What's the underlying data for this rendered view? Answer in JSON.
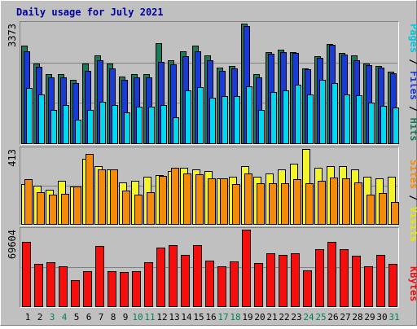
{
  "chart_data": {
    "type": "bar",
    "title": "Daily usage for July 2021",
    "categories": [
      "1",
      "2",
      "3",
      "4",
      "5",
      "6",
      "7",
      "8",
      "9",
      "10",
      "11",
      "12",
      "13",
      "14",
      "15",
      "16",
      "17",
      "18",
      "19",
      "20",
      "21",
      "22",
      "23",
      "24",
      "25",
      "26",
      "27",
      "28",
      "29",
      "30",
      "31"
    ],
    "weekend_days": [
      3,
      4,
      10,
      11,
      17,
      18,
      24,
      25,
      31
    ],
    "panels": [
      {
        "id": "hits-files-pages",
        "max_label": "3373",
        "ymax": 3373,
        "legend": [
          "Pages",
          " / ",
          "Files",
          " / ",
          "Hits"
        ],
        "series": [
          {
            "name": "Hits",
            "color": "#1a7a5a",
            "values": [
              2750,
              2250,
              1950,
              1950,
              1780,
              2250,
              2480,
              2250,
              1880,
              1950,
              1950,
              2830,
              2330,
              2600,
              2760,
              2480,
              2130,
              2180,
              3373,
              1950,
              2580,
              2650,
              2580,
              2110,
              2450,
              2800,
              2550,
              2480,
              2250,
              2180,
              2030
            ]
          },
          {
            "name": "Files",
            "color": "#1a3ad6",
            "values": [
              2600,
              2150,
              1850,
              1850,
              1700,
              2050,
              2330,
              2100,
              1780,
              1850,
              1850,
              2300,
              2230,
              2450,
              2600,
              2330,
              2050,
              2100,
              3300,
              1850,
              2530,
              2580,
              2540,
              2080,
              2400,
              2770,
              2500,
              2330,
              2200,
              2130,
              1980
            ]
          },
          {
            "name": "Pages",
            "color": "#00d8ef",
            "values": [
              1550,
              1380,
              930,
              1080,
              670,
              950,
              1180,
              1080,
              880,
              1030,
              1030,
              1080,
              730,
              1480,
              1580,
              1280,
              1320,
              1320,
              1600,
              930,
              1450,
              1480,
              1650,
              1380,
              1780,
              1700,
              1380,
              1350,
              1150,
              1050,
              1000
            ]
          }
        ]
      },
      {
        "id": "visits-sites",
        "max_label": "413",
        "ymax": 413,
        "legend": [
          "Sites",
          " / ",
          "Visits"
        ],
        "series": [
          {
            "name": "Visits",
            "color": "#f4f42a",
            "values": [
              220,
              210,
              190,
              240,
              205,
              360,
              320,
              300,
              230,
              240,
              260,
              270,
              290,
              310,
              300,
              290,
              250,
              260,
              320,
              260,
              280,
              300,
              330,
              413,
              310,
              320,
              320,
              300,
              260,
              250,
              260
            ]
          },
          {
            "name": "Sites",
            "color": "#f48a0a",
            "values": [
              245,
              175,
              160,
              165,
              205,
              385,
              300,
              300,
              185,
              160,
              175,
              265,
              310,
              280,
              275,
              250,
              250,
              220,
              280,
              225,
              225,
              225,
              245,
              225,
              240,
              255,
              250,
              230,
              160,
              170,
              120
            ]
          }
        ]
      },
      {
        "id": "kbytes",
        "max_label": "69604",
        "ymax": 69604,
        "legend": [
          "KBytes"
        ],
        "series": [
          {
            "name": "KBytes",
            "color": "#f40e0e",
            "values": [
              58800,
              38600,
              40200,
              36500,
              23500,
              32000,
              54500,
              31600,
              31400,
              31800,
              40000,
              53000,
              55200,
              47000,
              55400,
              41600,
              36600,
              40600,
              69604,
              39600,
              48200,
              46400,
              48400,
              32900,
              51600,
              58800,
              52000,
              45600,
              36600,
              46900,
              38400
            ]
          }
        ]
      }
    ]
  }
}
